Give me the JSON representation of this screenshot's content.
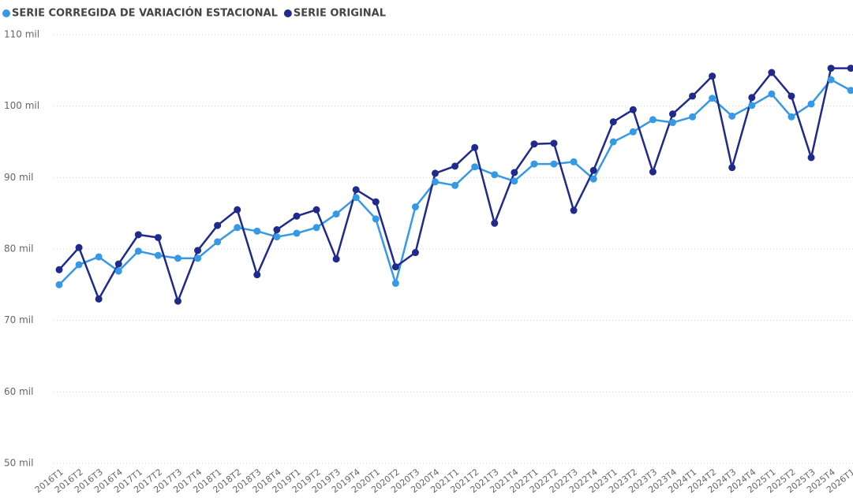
{
  "chart_data": {
    "type": "line",
    "categories": [
      "2016T1",
      "2016T2",
      "2016T3",
      "2016T4",
      "2017T1",
      "2017T2",
      "2017T3",
      "2017T4",
      "2018T1",
      "2018T2",
      "2018T3",
      "2018T4",
      "2019T1",
      "2019T2",
      "2019T3",
      "2019T4",
      "2020T1",
      "2020T2",
      "2020T3",
      "2020T4",
      "2021T1",
      "2021T2",
      "2021T3",
      "2021T4",
      "2022T1",
      "2022T2",
      "2022T3",
      "2022T4",
      "2023T1",
      "2023T2",
      "2023T3",
      "2023T4",
      "2024T1",
      "2024T2",
      "2024T3",
      "2024T4",
      "2025T1",
      "2025T2",
      "2025T3",
      "2025T4",
      "2026T1"
    ],
    "series": [
      {
        "name": "SERIE CORREGIDA DE VARIACIÓN ESTACIONAL",
        "color": "#3599e6",
        "values": [
          75.0,
          77.8,
          78.9,
          76.9,
          79.7,
          79.1,
          78.7,
          78.7,
          81.0,
          83.0,
          82.5,
          81.7,
          82.2,
          83.0,
          84.9,
          87.2,
          84.2,
          75.2,
          85.9,
          89.4,
          88.9,
          91.5,
          90.4,
          89.5,
          91.9,
          91.9,
          92.2,
          89.8,
          95.0,
          96.4,
          98.1,
          97.7,
          98.5,
          101.1,
          98.6,
          100.1,
          101.7,
          98.5,
          100.3,
          103.7,
          102.2
        ]
      },
      {
        "name": "SERIE ORIGINAL",
        "color": "#1f2a8c",
        "values": [
          77.1,
          80.2,
          73.0,
          77.9,
          82.0,
          81.6,
          72.7,
          79.8,
          83.3,
          85.5,
          76.4,
          82.7,
          84.6,
          85.5,
          78.6,
          88.3,
          86.6,
          77.5,
          79.5,
          90.6,
          91.6,
          94.2,
          83.6,
          90.7,
          94.7,
          94.8,
          85.4,
          91.0,
          97.8,
          99.5,
          90.8,
          98.9,
          101.4,
          104.2,
          91.4,
          101.2,
          104.7,
          101.4,
          92.8,
          105.3,
          105.3
        ]
      }
    ],
    "ylim": [
      50,
      110
    ],
    "yticks": [
      {
        "value": 50,
        "label": "50 mil"
      },
      {
        "value": 60,
        "label": "60 mil"
      },
      {
        "value": 70,
        "label": "70 mil"
      },
      {
        "value": 80,
        "label": "80 mil"
      },
      {
        "value": 90,
        "label": "90 mil"
      },
      {
        "value": 100,
        "label": "100 mil"
      },
      {
        "value": 110,
        "label": "110 mil"
      }
    ],
    "grid": true
  }
}
